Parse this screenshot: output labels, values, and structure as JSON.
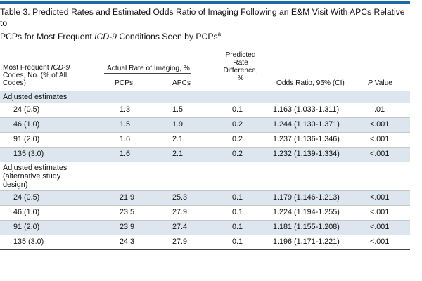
{
  "title": {
    "line1": "Table 3. Predicted Rates and Estimated Odds Ratio of Imaging Following an E&M Visit With APCs Relative to",
    "line2_pre": "PCPs for Most Frequent ",
    "line2_italic": "ICD-9",
    "line2_post": " Conditions Seen by PCPs",
    "superscript": "a"
  },
  "headers": {
    "col1_line1_pre": "Most Frequent ",
    "col1_line1_italic": "ICD-9",
    "col1_line2": "Codes, No. (% of All",
    "col1_line3": "Codes)",
    "actual_rate": "Actual Rate of Imaging, %",
    "pcps": "PCPs",
    "apcs": "APCs",
    "pred_line1": "Predicted",
    "pred_line2": "Rate",
    "pred_line3": "Difference,",
    "pred_line4": "%",
    "odds": "Odds Ratio, 95% (CI)",
    "p_italic": "P",
    "p_rest": " Value"
  },
  "sections": [
    {
      "label": "Adjusted estimates",
      "rows": [
        {
          "code": "24 (0.5)",
          "pcps": "1.3",
          "apcs": "1.5",
          "diff": "0.1",
          "odds": "1.163 (1.033-1.311)",
          "p": ".01"
        },
        {
          "code": "46 (1.0)",
          "pcps": "1.5",
          "apcs": "1.9",
          "diff": "0.2",
          "odds": "1.244 (1.130-1.371)",
          "p": "<.001"
        },
        {
          "code": "91 (2.0)",
          "pcps": "1.6",
          "apcs": "2.1",
          "diff": "0.2",
          "odds": "1.237 (1.136-1.346)",
          "p": "<.001"
        },
        {
          "code": "135 (3.0)",
          "pcps": "1.6",
          "apcs": "2.1",
          "diff": "0.2",
          "odds": "1.232 (1.139-1.334)",
          "p": "<.001"
        }
      ]
    },
    {
      "label_line1": "Adjusted estimates",
      "label_line2": "(alternative study",
      "label_line3": "design)",
      "rows": [
        {
          "code": "24 (0.5)",
          "pcps": "21.9",
          "apcs": "25.3",
          "diff": "0.1",
          "odds": "1.179 (1.146-1.213)",
          "p": "<.001"
        },
        {
          "code": "46 (1.0)",
          "pcps": "23.5",
          "apcs": "27.9",
          "diff": "0.1",
          "odds": "1.224 (1.194-1.255)",
          "p": "<.001"
        },
        {
          "code": "91 (2.0)",
          "pcps": "23.9",
          "apcs": "27.4",
          "diff": "0.1",
          "odds": "1.181 (1.155-1.208)",
          "p": "<.001"
        },
        {
          "code": "135 (3.0)",
          "pcps": "24.3",
          "apcs": "27.9",
          "diff": "0.1",
          "odds": "1.196 (1.171-1.221)",
          "p": "<.001"
        }
      ]
    }
  ],
  "colors": {
    "accent_bar": "#1a6aa6",
    "row_shade": "#dde6ef"
  }
}
